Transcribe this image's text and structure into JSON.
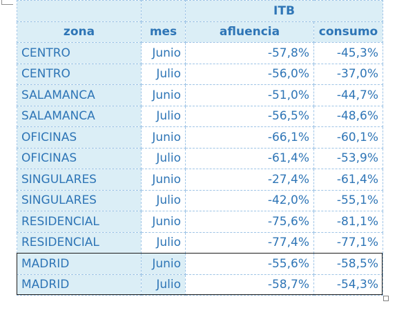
{
  "table": {
    "group_header": "ITB",
    "columns": {
      "zona": "zona",
      "mes": "mes",
      "afluencia": "afluencia",
      "consumo": "consumo"
    },
    "rows": [
      {
        "zona": "CENTRO",
        "mes": "Junio",
        "afluencia": "-57,8%",
        "consumo": "-45,3%"
      },
      {
        "zona": "CENTRO",
        "mes": "Julio",
        "afluencia": "-56,0%",
        "consumo": "-37,0%"
      },
      {
        "zona": "SALAMANCA",
        "mes": "Junio",
        "afluencia": "-51,0%",
        "consumo": "-44,7%"
      },
      {
        "zona": "SALAMANCA",
        "mes": "Julio",
        "afluencia": "-56,5%",
        "consumo": "-48,6%"
      },
      {
        "zona": "OFICINAS",
        "mes": "Junio",
        "afluencia": "-66,1%",
        "consumo": "-60,1%"
      },
      {
        "zona": "OFICINAS",
        "mes": "Julio",
        "afluencia": "-61,4%",
        "consumo": "-53,9%"
      },
      {
        "zona": "SINGULARES",
        "mes": "Junio",
        "afluencia": "-27,4%",
        "consumo": "-61,4%"
      },
      {
        "zona": "SINGULARES",
        "mes": "Julio",
        "afluencia": "-42,0%",
        "consumo": "-55,1%"
      },
      {
        "zona": "RESIDENCIAL",
        "mes": "Junio",
        "afluencia": "-75,6%",
        "consumo": "-81,1%"
      },
      {
        "zona": "RESIDENCIAL",
        "mes": "Julio",
        "afluencia": "-77,4%",
        "consumo": "-77,1%"
      },
      {
        "zona": "MADRID",
        "mes": "Junio",
        "afluencia": "-55,6%",
        "consumo": "-58,5%"
      },
      {
        "zona": "MADRID",
        "mes": "Julio",
        "afluencia": "-58,7%",
        "consumo": "-54,3%"
      }
    ]
  },
  "colors": {
    "text": "#2e75b6",
    "header_fill": "#dbeef6",
    "grid_line": "#9dc3e6",
    "highlight_border": "#1a1a1a"
  }
}
